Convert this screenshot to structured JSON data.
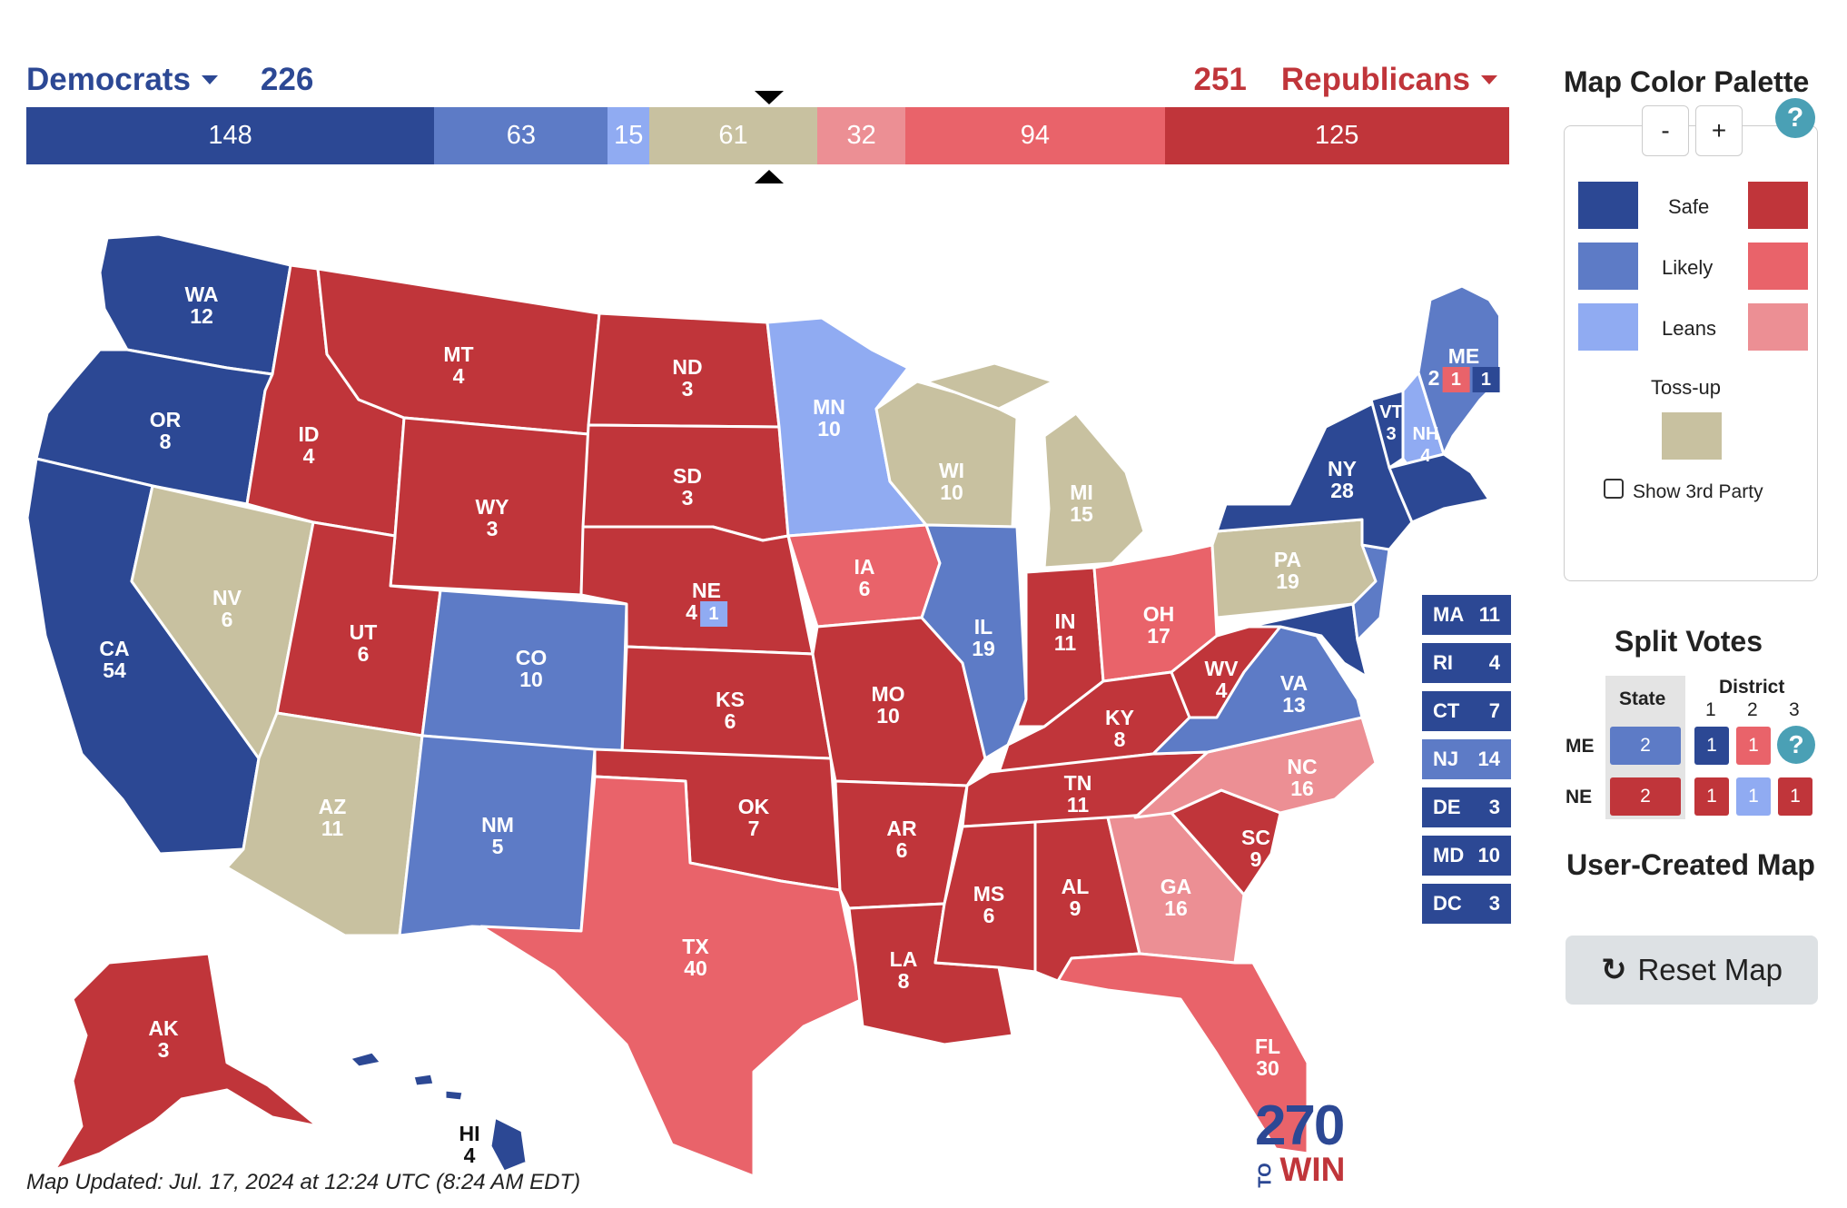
{
  "header": {
    "dem_label": "Democrats",
    "dem_total": "226",
    "rep_label": "Republicans",
    "rep_total": "251"
  },
  "bar": [
    {
      "value": 148,
      "label": "148",
      "color": "#2c4894"
    },
    {
      "value": 63,
      "label": "63",
      "color": "#5d7bc6"
    },
    {
      "value": 15,
      "label": "15",
      "color": "#90abf2"
    },
    {
      "value": 61,
      "label": "61",
      "color": "#c8c1a0"
    },
    {
      "value": 32,
      "label": "32",
      "color": "#ec8f94"
    },
    {
      "value": 94,
      "label": "94",
      "color": "#e9636a"
    },
    {
      "value": 125,
      "label": "125",
      "color": "#c0353a"
    }
  ],
  "colors": {
    "safe_d": "#2c4894",
    "likely_d": "#5d7bc6",
    "leans_d": "#90abf2",
    "tossup": "#c8c1a0",
    "leans_r": "#ec8f94",
    "likely_r": "#e9636a",
    "safe_r": "#c0353a"
  },
  "states": {
    "WA": "12",
    "OR": "8",
    "CA": "54",
    "NV": "6",
    "ID": "4",
    "MT": "4",
    "WY": "3",
    "UT": "6",
    "AZ": "11",
    "CO": "10",
    "NM": "5",
    "ND": "3",
    "SD": "3",
    "NE": "4",
    "KS": "6",
    "OK": "7",
    "TX": "40",
    "MN": "10",
    "IA": "6",
    "MO": "10",
    "AR": "6",
    "LA": "8",
    "WI": "10",
    "IL": "19",
    "MS": "6",
    "MI": "15",
    "IN": "11",
    "KY": "8",
    "TN": "11",
    "AL": "9",
    "OH": "17",
    "WV": "4",
    "VA": "13",
    "NC": "16",
    "SC": "9",
    "GA": "16",
    "FL": "30",
    "PA": "19",
    "NY": "28",
    "VT": "3",
    "NH": "4",
    "ME": "2",
    "AK": "3",
    "HI": "4"
  },
  "me_districts": [
    "1",
    "1"
  ],
  "ne_district": "1",
  "small_states": [
    {
      "abbr": "MA",
      "ev": "11",
      "color": "#2c4894"
    },
    {
      "abbr": "RI",
      "ev": "4",
      "color": "#2c4894"
    },
    {
      "abbr": "CT",
      "ev": "7",
      "color": "#2c4894"
    },
    {
      "abbr": "NJ",
      "ev": "14",
      "color": "#5d7bc6"
    },
    {
      "abbr": "DE",
      "ev": "3",
      "color": "#2c4894"
    },
    {
      "abbr": "MD",
      "ev": "10",
      "color": "#2c4894"
    },
    {
      "abbr": "DC",
      "ev": "3",
      "color": "#2c4894"
    }
  ],
  "logo": {
    "number": "270",
    "to": "TO",
    "win": "WIN"
  },
  "updated": "Map Updated: Jul. 17, 2024 at 12:24 UTC (8:24 AM EDT)",
  "palette": {
    "title": "Map Color Palette",
    "minus": "-",
    "plus": "+",
    "help": "?",
    "safe": "Safe",
    "likely": "Likely",
    "leans": "Leans",
    "tossup": "Toss-up",
    "show_3rd": "Show 3rd Party"
  },
  "split": {
    "title": "Split Votes",
    "state_header": "State",
    "district_header": "District",
    "d1": "1",
    "d2": "2",
    "d3": "3",
    "me_label": "ME",
    "ne_label": "NE",
    "me_values": [
      "2",
      "1",
      "1"
    ],
    "ne_values": [
      "2",
      "1",
      "1",
      "1"
    ],
    "help": "?"
  },
  "user_created": "User-Created Map",
  "reset_label": "Reset Map",
  "reset_icon": "refresh-icon"
}
